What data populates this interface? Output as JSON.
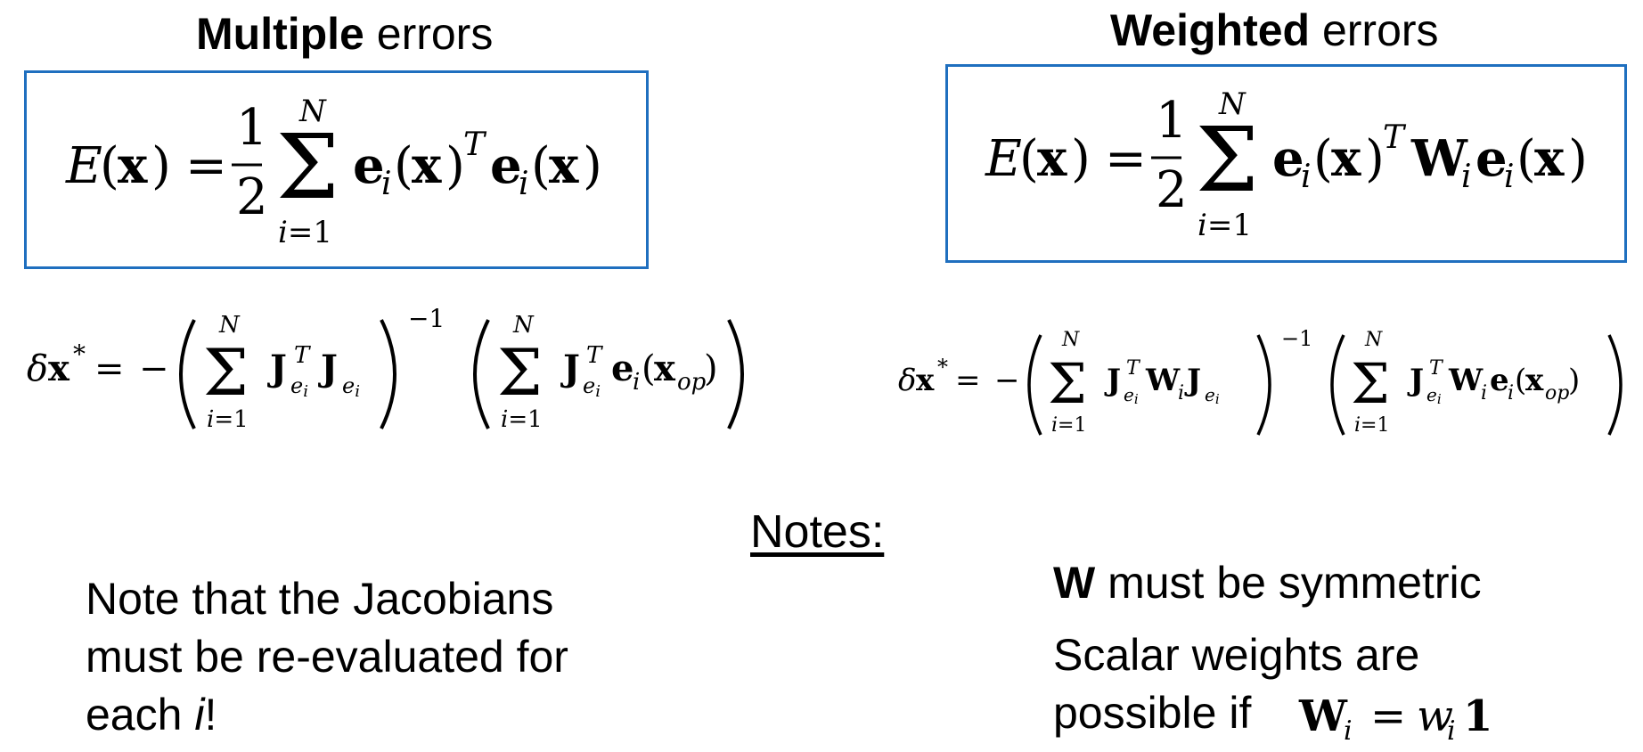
{
  "left": {
    "title_bold": "Multiple",
    "title_rest": " errors",
    "equation": "E(x) = 1/2 Σ_{i=1}^{N} e_i(x)^T e_i(x)",
    "update": "δx* = −(Σ_{i=1}^{N} J_{e_i}^T J_{e_i})^{−1} (Σ_{i=1}^{N} J_{e_i}^T e_i(x_op))"
  },
  "right": {
    "title_bold": "Weighted",
    "title_rest": " errors",
    "equation": "E(x) = 1/2 Σ_{i=1}^{N} e_i(x)^T W_i e_i(x)",
    "update": "δx* = −(Σ_{i=1}^{N} J_{e_i}^T W_i J_{e_i})^{−1} (Σ_{i=1}^{N} J_{e_i}^T W_i e_i(x_op))"
  },
  "notes": {
    "heading": "Notes:",
    "left_line1": "Note that the Jacobians",
    "left_line2": "must be re-evaluated for",
    "left_line3_pre": "each ",
    "left_line3_var": "i",
    "left_line3_post": "!",
    "right_w": "W",
    "right_line1_rest": " must be symmetric",
    "right_line2": "Scalar weights are",
    "right_line3": "possible if",
    "right_formula": "W_i = w_i 1"
  },
  "colors": {
    "box_border": "#1f6fbf",
    "text": "#000000"
  }
}
